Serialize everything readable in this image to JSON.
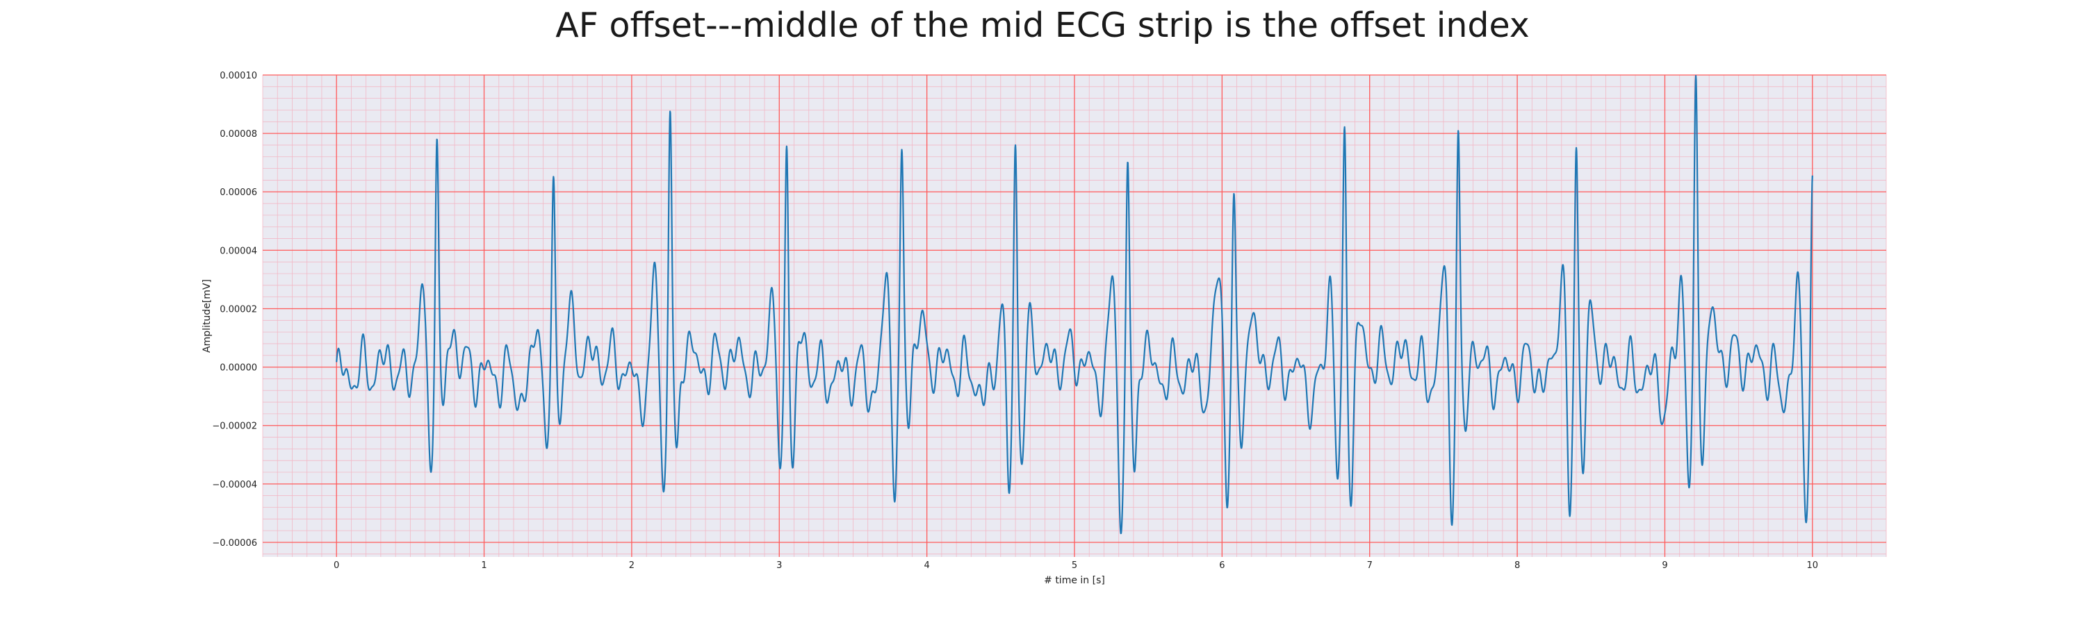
{
  "chart_data": {
    "type": "line",
    "title": "AF offset---middle of the mid ECG strip is the offset index",
    "xlabel": "# time in [s]",
    "ylabel": "Amplitude[mV]",
    "xlim": [
      -0.5,
      10.5
    ],
    "ylim": [
      -6.5e-05,
      0.0001
    ],
    "xticks": [
      0,
      1,
      2,
      3,
      4,
      5,
      6,
      7,
      8,
      9,
      10
    ],
    "xtick_labels": [
      "0",
      "1",
      "2",
      "3",
      "4",
      "5",
      "6",
      "7",
      "8",
      "9",
      "10"
    ],
    "yticks": [
      -6e-05,
      -4e-05,
      -2e-05,
      0,
      2e-05,
      4e-05,
      6e-05,
      8e-05,
      0.0001
    ],
    "ytick_labels": [
      "−0.00006",
      "−0.00004",
      "−0.00002",
      "0.00000",
      "0.00002",
      "0.00004",
      "0.00006",
      "0.00008",
      "0.00010"
    ],
    "grid": true,
    "background_color": "#eaeaf2",
    "major_grid_color": "#ff5a5a",
    "minor_grid_color": "#f2b8c6",
    "line_color": "#1f77b4",
    "beats": [
      {
        "t": 0.68,
        "r": 8.4e-05,
        "q": -4.3e-05,
        "s": -2.2e-05,
        "pre": 2.3e-05
      },
      {
        "t": 1.47,
        "r": 6.5e-05,
        "q": -4e-05,
        "s": -1.8e-05,
        "pre": 2e-05
      },
      {
        "t": 2.26,
        "r": 9.3e-05,
        "q": -4.1e-05,
        "s": -3.3e-05,
        "pre": 3.2e-05
      },
      {
        "t": 3.05,
        "r": 8.5e-05,
        "q": -4.8e-05,
        "s": -3.4e-05,
        "pre": 2.6e-05
      },
      {
        "t": 3.83,
        "r": 6.8e-05,
        "q": -4.4e-05,
        "s": -2.2e-05,
        "pre": 2.5e-05
      },
      {
        "t": 4.6,
        "r": 8.1e-05,
        "q": -4.1e-05,
        "s": -3.1e-05,
        "pre": 2.5e-05
      },
      {
        "t": 5.36,
        "r": 7.6e-05,
        "q": -5.7e-05,
        "s": -4.1e-05,
        "pre": 2.6e-05
      },
      {
        "t": 6.08,
        "r": 5.7e-05,
        "q": -4.8e-05,
        "s": -3.3e-05,
        "pre": 3.2e-05
      },
      {
        "t": 6.83,
        "r": 8.3e-05,
        "q": -4.2e-05,
        "s": -3.6e-05,
        "pre": 3.4e-05
      },
      {
        "t": 7.6,
        "r": 8.5e-05,
        "q": -4.5e-05,
        "s": -2.6e-05,
        "pre": 3.1e-05
      },
      {
        "t": 8.4,
        "r": 7.9e-05,
        "q": -5.8e-05,
        "s": -3.5e-05,
        "pre": 3.2e-05
      },
      {
        "t": 9.21,
        "r": 9.1e-05,
        "q": -4.4e-05,
        "s": -2.4e-05,
        "pre": 3.3e-05
      },
      {
        "t": 10.0,
        "r": 6.5e-05,
        "q": -4.4e-05,
        "s": -1.5e-05,
        "pre": 2.5e-05
      }
    ]
  }
}
